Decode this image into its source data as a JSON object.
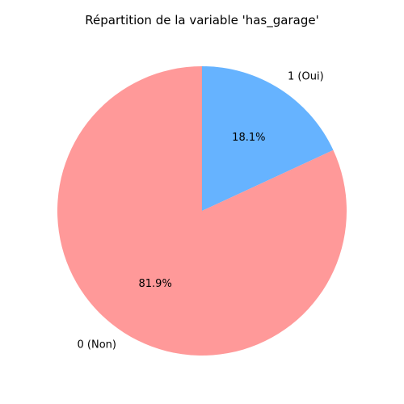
{
  "chart_data": {
    "type": "pie",
    "title": "Répartition de la variable 'has_garage'",
    "categories": [
      "1 (Oui)",
      "0 (Non)"
    ],
    "values": [
      18.1,
      81.9
    ],
    "value_labels": [
      "18.1%",
      "81.9%"
    ],
    "colors": [
      "#66b3ff",
      "#ff9999"
    ],
    "start_angle_deg": 90,
    "direction": "clockwise",
    "legend": "none"
  }
}
